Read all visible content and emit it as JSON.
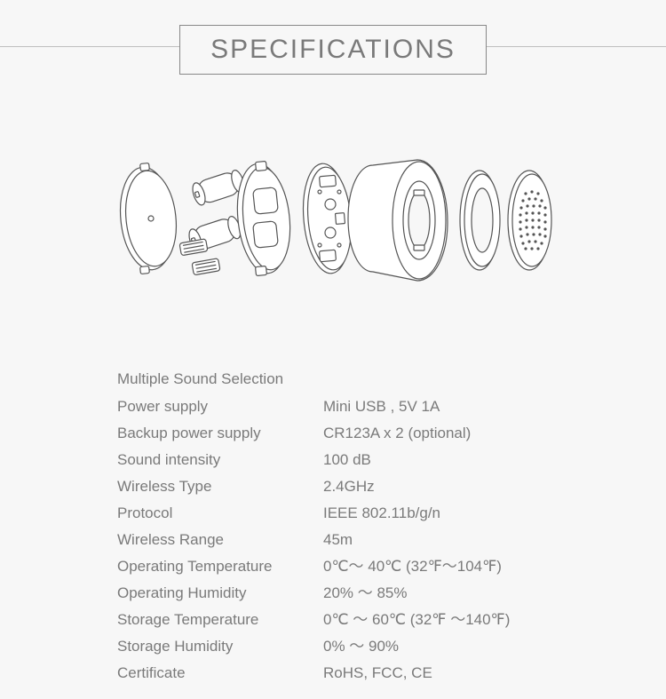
{
  "title": "SPECIFICATIONS",
  "diagram": {
    "stroke": "#555555",
    "fill": "#ffffff",
    "background": "#f7f7f7"
  },
  "specs": {
    "heading": "Multiple Sound Selection",
    "rows": [
      {
        "label": "Power supply",
        "value": " Mini USB , 5V 1A"
      },
      {
        "label": "Backup power supply",
        "value": "CR123A x 2 (optional)"
      },
      {
        "label": "Sound intensity",
        "value": "100 dB"
      },
      {
        "label": "Wireless Type",
        "value": "2.4GHz"
      },
      {
        "label": "Protocol",
        "value": "IEEE 802.11b/g/n"
      },
      {
        "label": "Wireless Range",
        "value": "45m"
      },
      {
        "label": "Operating Temperature",
        "value": " 0℃～ 40℃  (32℉～104℉)"
      },
      {
        "label": "Operating Humidity",
        "value": "20% ～ 85%"
      },
      {
        "label": "Storage Temperature",
        "value": "0℃ ～ 60℃ (32℉ ～140℉)"
      },
      {
        "label": "Storage Humidity",
        "value": "0% ～ 90%"
      },
      {
        "label": "Certificate",
        "value": "RoHS, FCC, CE"
      }
    ]
  },
  "colors": {
    "page_bg": "#f7f7f7",
    "text": "#7a7a7a",
    "rule": "#bfbfbf",
    "title_border": "#888888"
  },
  "typography": {
    "title_fontsize": 30,
    "body_fontsize": 17,
    "font_weight": 300
  }
}
